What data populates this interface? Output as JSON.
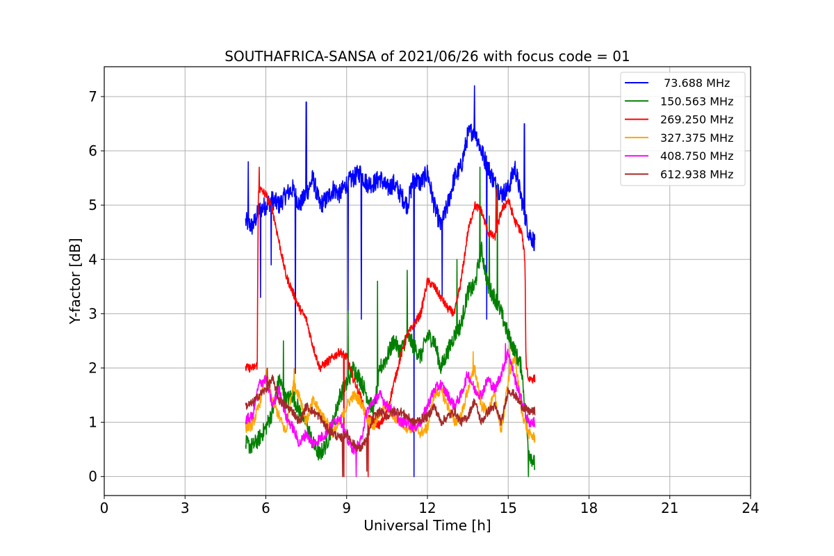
{
  "chart_data": {
    "type": "line",
    "title": "SOUTHAFRICA-SANSA of 2021/06/26 with focus code = 01",
    "xlabel": "Universal Time [h]",
    "ylabel": "Y-factor [dB]",
    "xlim": [
      0,
      24
    ],
    "ylim": [
      -0.35,
      7.55
    ],
    "xticks": [
      0,
      3,
      6,
      9,
      12,
      15,
      18,
      21,
      24
    ],
    "yticks": [
      0,
      1,
      2,
      3,
      4,
      5,
      6,
      7
    ],
    "xtick_labels": [
      "0",
      "3",
      "6",
      "9",
      "12",
      "15",
      "18",
      "21",
      "24"
    ],
    "ytick_labels": [
      "0",
      "1",
      "2",
      "3",
      "4",
      "5",
      "6",
      "7"
    ],
    "grid": true,
    "legend_position": "top-right",
    "series": [
      {
        "name": " 73.688 MHz",
        "color": "#0000ff",
        "x": [
          5.25,
          5.5,
          5.75,
          6.0,
          6.25,
          6.5,
          6.75,
          7.0,
          7.25,
          7.5,
          7.75,
          8.0,
          8.25,
          8.5,
          8.75,
          9.0,
          9.25,
          9.5,
          9.75,
          10.0,
          10.25,
          10.5,
          10.75,
          11.0,
          11.25,
          11.5,
          11.75,
          12.0,
          12.25,
          12.5,
          12.75,
          13.0,
          13.25,
          13.5,
          13.75,
          14.0,
          14.25,
          14.5,
          14.75,
          15.0,
          15.25,
          15.5,
          15.75,
          16.0
        ],
        "y": [
          4.7,
          4.6,
          4.9,
          5.0,
          5.1,
          5.0,
          5.2,
          5.3,
          5.0,
          5.2,
          5.5,
          5.0,
          5.1,
          5.3,
          5.2,
          5.4,
          5.5,
          5.6,
          5.4,
          5.4,
          5.5,
          5.3,
          5.4,
          5.2,
          5.0,
          5.5,
          5.4,
          5.6,
          5.0,
          4.6,
          5.0,
          5.5,
          5.7,
          6.3,
          6.4,
          6.0,
          5.7,
          5.4,
          5.2,
          5.3,
          5.7,
          5.1,
          4.5,
          4.3
        ],
        "spikes": [
          [
            5.35,
            5.8
          ],
          [
            5.8,
            3.3
          ],
          [
            6.2,
            3.9
          ],
          [
            7.1,
            1.9
          ],
          [
            7.5,
            6.9
          ],
          [
            9.05,
            3.0
          ],
          [
            9.55,
            2.9
          ],
          [
            11.5,
            0.0
          ],
          [
            12.55,
            3.3
          ],
          [
            13.75,
            7.2
          ],
          [
            14.2,
            2.9
          ],
          [
            15.6,
            6.5
          ]
        ]
      },
      {
        "name": "150.563 MHz",
        "color": "#008000",
        "x": [
          5.25,
          5.5,
          5.75,
          6.0,
          6.25,
          6.5,
          6.75,
          7.0,
          7.25,
          7.5,
          7.75,
          8.0,
          8.25,
          8.5,
          8.75,
          9.0,
          9.25,
          9.5,
          9.75,
          10.0,
          10.25,
          10.5,
          10.75,
          11.0,
          11.25,
          11.5,
          11.75,
          12.0,
          12.25,
          12.5,
          12.75,
          13.0,
          13.25,
          13.5,
          13.75,
          14.0,
          14.25,
          14.5,
          14.75,
          15.0,
          15.25,
          15.5,
          15.75,
          16.0
        ],
        "y": [
          0.6,
          0.55,
          0.7,
          0.9,
          1.2,
          1.8,
          1.4,
          1.5,
          1.2,
          1.0,
          0.6,
          0.4,
          0.6,
          1.0,
          1.5,
          1.7,
          2.0,
          1.8,
          1.5,
          1.2,
          2.0,
          2.2,
          2.5,
          2.3,
          2.6,
          2.4,
          2.2,
          2.6,
          2.5,
          2.0,
          2.3,
          2.6,
          2.8,
          3.4,
          3.5,
          4.2,
          3.5,
          3.3,
          3.0,
          2.6,
          2.3,
          2.0,
          0.5,
          0.2
        ],
        "spikes": [
          [
            6.65,
            2.5
          ],
          [
            9.05,
            3.05
          ],
          [
            10.15,
            3.6
          ],
          [
            11.25,
            3.8
          ],
          [
            13.1,
            4.0
          ],
          [
            13.95,
            5.7
          ],
          [
            14.3,
            4.8
          ],
          [
            14.6,
            5.4
          ],
          [
            15.75,
            0.0
          ]
        ]
      },
      {
        "name": "269.250 MHz",
        "color": "#ff0000",
        "x": [
          5.25,
          5.5,
          5.68,
          5.72,
          5.75,
          6.0,
          6.25,
          6.5,
          6.75,
          7.0,
          7.25,
          7.5,
          7.75,
          8.0,
          8.25,
          8.5,
          8.75,
          9.0,
          9.25,
          9.5,
          9.75,
          10.0,
          10.25,
          10.5,
          10.75,
          11.0,
          11.25,
          11.5,
          11.75,
          12.0,
          12.25,
          12.5,
          12.75,
          13.0,
          13.25,
          13.5,
          13.75,
          14.0,
          14.25,
          14.5,
          14.75,
          15.0,
          15.25,
          15.5,
          15.62,
          15.66,
          15.75,
          16.0
        ],
        "y": [
          2.0,
          2.0,
          2.05,
          5.2,
          5.3,
          5.2,
          4.9,
          4.3,
          3.7,
          3.4,
          3.1,
          2.9,
          2.4,
          2.0,
          2.1,
          2.2,
          2.3,
          2.2,
          1.8,
          1.5,
          1.1,
          1.0,
          0.95,
          1.2,
          1.7,
          2.2,
          2.6,
          2.8,
          3.0,
          3.6,
          3.5,
          3.3,
          3.1,
          3.0,
          3.6,
          4.5,
          5.0,
          4.9,
          4.5,
          4.4,
          4.9,
          5.1,
          4.7,
          4.5,
          4.0,
          2.1,
          1.8,
          1.8
        ],
        "spikes": [
          [
            5.75,
            5.7
          ],
          [
            8.9,
            0.0
          ],
          [
            9.8,
            0.0
          ],
          [
            14.55,
            5.3
          ]
        ]
      },
      {
        "name": "327.375 MHz",
        "color": "#ffa500",
        "x": [
          5.25,
          5.5,
          5.75,
          6.0,
          6.25,
          6.5,
          6.75,
          7.0,
          7.25,
          7.5,
          7.75,
          8.0,
          8.25,
          8.5,
          8.75,
          9.0,
          9.25,
          9.5,
          9.75,
          10.0,
          10.25,
          10.5,
          10.75,
          11.0,
          11.25,
          11.5,
          11.75,
          12.0,
          12.25,
          12.5,
          12.75,
          13.0,
          13.25,
          13.5,
          13.75,
          14.0,
          14.25,
          14.5,
          14.75,
          15.0,
          15.25,
          15.5,
          15.75,
          16.0
        ],
        "y": [
          0.9,
          0.95,
          1.3,
          1.9,
          1.4,
          1.1,
          0.8,
          1.7,
          1.5,
          1.0,
          1.4,
          1.2,
          1.0,
          0.8,
          1.0,
          1.3,
          1.5,
          1.4,
          1.1,
          0.9,
          1.2,
          1.3,
          1.1,
          1.0,
          0.9,
          0.9,
          0.8,
          0.9,
          1.5,
          1.6,
          1.3,
          1.0,
          1.1,
          1.6,
          2.0,
          1.3,
          1.2,
          1.5,
          0.8,
          1.8,
          2.2,
          1.2,
          0.8,
          0.7
        ],
        "spikes": [
          [
            7.05,
            2.0
          ],
          [
            13.7,
            2.3
          ],
          [
            15.05,
            2.4
          ]
        ]
      },
      {
        "name": "408.750 MHz",
        "color": "#ff00ff",
        "x": [
          5.25,
          5.5,
          5.75,
          6.0,
          6.25,
          6.5,
          6.75,
          7.0,
          7.25,
          7.5,
          7.75,
          8.0,
          8.25,
          8.5,
          8.75,
          9.0,
          9.25,
          9.5,
          9.75,
          10.0,
          10.25,
          10.5,
          10.75,
          11.0,
          11.25,
          11.5,
          11.75,
          12.0,
          12.25,
          12.5,
          12.75,
          13.0,
          13.25,
          13.5,
          13.75,
          14.0,
          14.25,
          14.5,
          14.75,
          15.0,
          15.25,
          15.5,
          15.75,
          16.0
        ],
        "y": [
          1.05,
          1.1,
          1.7,
          1.8,
          1.3,
          1.6,
          1.1,
          0.9,
          0.6,
          0.8,
          0.6,
          0.7,
          0.8,
          1.0,
          1.1,
          0.7,
          0.5,
          0.6,
          1.2,
          1.4,
          1.5,
          1.3,
          1.2,
          1.0,
          1.0,
          0.9,
          1.0,
          1.3,
          1.6,
          1.7,
          1.5,
          1.3,
          1.5,
          1.9,
          1.6,
          1.5,
          1.8,
          1.6,
          1.9,
          2.3,
          1.8,
          1.4,
          1.0,
          1.0
        ],
        "spikes": [
          [
            9.35,
            0.0
          ],
          [
            14.9,
            2.45
          ]
        ]
      },
      {
        "name": "612.938 MHz",
        "color": "#a52a2a",
        "x": [
          5.25,
          5.5,
          5.75,
          6.0,
          6.25,
          6.5,
          6.75,
          7.0,
          7.25,
          7.5,
          7.75,
          8.0,
          8.25,
          8.5,
          8.75,
          9.0,
          9.25,
          9.5,
          9.75,
          10.0,
          10.25,
          10.5,
          10.75,
          11.0,
          11.25,
          11.5,
          11.75,
          12.0,
          12.25,
          12.5,
          12.75,
          13.0,
          13.25,
          13.5,
          13.75,
          14.0,
          14.25,
          14.5,
          14.75,
          15.0,
          15.25,
          15.5,
          15.75,
          16.0
        ],
        "y": [
          1.3,
          1.35,
          1.5,
          1.6,
          1.8,
          1.4,
          1.3,
          1.2,
          1.0,
          1.3,
          1.2,
          1.1,
          0.9,
          0.8,
          0.7,
          0.8,
          0.6,
          0.5,
          0.7,
          1.1,
          1.2,
          1.1,
          1.2,
          1.2,
          1.1,
          1.0,
          1.05,
          1.1,
          1.3,
          1.0,
          1.1,
          1.2,
          1.0,
          1.1,
          1.4,
          1.0,
          1.2,
          1.3,
          1.0,
          1.6,
          1.5,
          1.3,
          1.2,
          1.2
        ],
        "spikes": [
          [
            6.05,
            2.0
          ],
          [
            8.85,
            0.0
          ],
          [
            9.75,
            0.1
          ]
        ]
      }
    ]
  }
}
